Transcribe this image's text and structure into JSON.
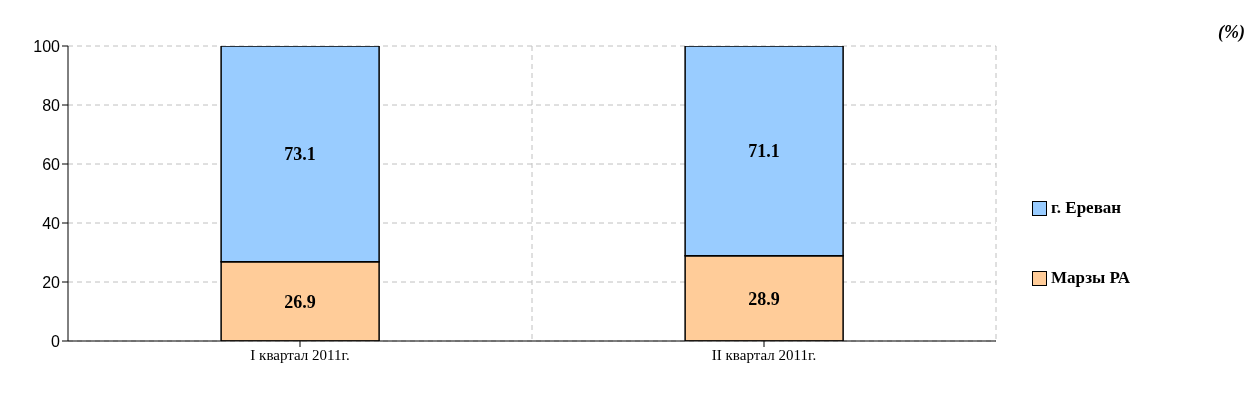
{
  "chart_data": {
    "type": "bar",
    "stacked": true,
    "categories": [
      "I квартал 2011г.",
      "II квартал 2011г."
    ],
    "series": [
      {
        "name": "Марзы РА",
        "color": "#ffcc99",
        "values": [
          26.9,
          28.9
        ]
      },
      {
        "name": "г. Ереван",
        "color": "#99ccff",
        "values": [
          73.1,
          71.1
        ]
      }
    ],
    "ylim": [
      0,
      100
    ],
    "yticks": [
      0,
      20,
      40,
      60,
      80,
      100
    ],
    "grid": true,
    "legend": "right",
    "data_labels": true,
    "annotations": [
      "(%)"
    ]
  }
}
